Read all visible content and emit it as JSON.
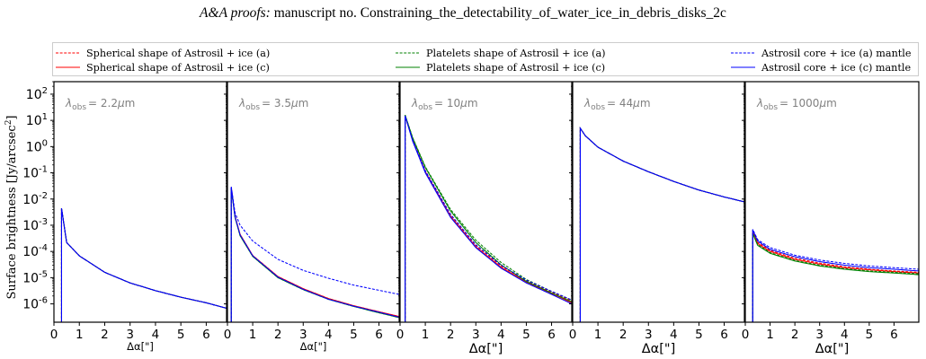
{
  "header": {
    "prefix": "A&A proofs:",
    "text": " manuscript no. Constraining_the_detectability_of_water_ice_in_debris_disks_2c"
  },
  "chart_data": {
    "type": "line",
    "ylabel": "Surface brightness [Jy/arcsec",
    "ylabel_sup": "2",
    "ylabel_end": "]",
    "yscale": "log",
    "ylim": [
      2e-07,
      300
    ],
    "y_tick_labels": [
      {
        "base": "10",
        "exp": "2"
      },
      {
        "base": "10",
        "exp": "1"
      },
      {
        "base": "10",
        "exp": "0"
      },
      {
        "base": "10",
        "exp": "-1"
      },
      {
        "base": "10",
        "exp": "-2"
      },
      {
        "base": "10",
        "exp": "-3"
      },
      {
        "base": "10",
        "exp": "-4"
      },
      {
        "base": "10",
        "exp": "-5"
      },
      {
        "base": "10",
        "exp": "-6"
      }
    ],
    "x_ticks": [
      "0",
      "1",
      "2",
      "3",
      "4",
      "5",
      "6"
    ],
    "legend": {
      "placement": "top",
      "entries": [
        {
          "label": "Spherical shape of Astrosil + ice (a)",
          "color": "#ff0000",
          "dash": true
        },
        {
          "label": "Spherical shape of Astrosil + ice (c)",
          "color": "#ff0000",
          "dash": false
        },
        {
          "label": "Platelets shape of Astrosil + ice (a)",
          "color": "#008000",
          "dash": true
        },
        {
          "label": "Platelets shape of Astrosil + ice (c)",
          "color": "#008000",
          "dash": false
        },
        {
          "label": "Astrosil core + ice (a) mantle",
          "color": "#0000ff",
          "dash": true
        },
        {
          "label": "Astrosil core + ice (c) mantle",
          "color": "#0000ff",
          "dash": false
        }
      ]
    },
    "panels": [
      {
        "lambda_sub": "obs",
        "lambda_val": "= 2.2",
        "lambda_unit": "m",
        "mu": "μ",
        "xlabel": "Δα[\"]",
        "xlabel_big": false,
        "xlim": [
          0,
          6.8
        ],
        "series": [
          {
            "color": "#ff0000",
            "dash": true,
            "x": [
              0.3,
              0.5,
              1,
              2,
              3,
              4,
              5,
              6,
              6.8
            ],
            "y": [
              0.0044,
              0.00022,
              6.8e-05,
              1.6e-05,
              6.3e-06,
              3.2e-06,
              1.8e-06,
              1.1e-06,
              6.8e-07
            ]
          },
          {
            "color": "#ff0000",
            "dash": false,
            "x": [
              0.3,
              0.5,
              1,
              2,
              3,
              4,
              5,
              6,
              6.8
            ],
            "y": [
              0.0044,
              0.00022,
              6.8e-05,
              1.6e-05,
              6.3e-06,
              3.2e-06,
              1.8e-06,
              1.1e-06,
              6.8e-07
            ]
          },
          {
            "color": "#008000",
            "dash": true,
            "x": [
              0.3,
              0.5,
              1,
              2,
              3,
              4,
              5,
              6,
              6.8
            ],
            "y": [
              0.0044,
              0.00022,
              6.8e-05,
              1.6e-05,
              6.3e-06,
              3.2e-06,
              1.8e-06,
              1.1e-06,
              6.8e-07
            ]
          },
          {
            "color": "#008000",
            "dash": false,
            "x": [
              0.3,
              0.5,
              1,
              2,
              3,
              4,
              5,
              6,
              6.8
            ],
            "y": [
              0.0044,
              0.00022,
              6.8e-05,
              1.6e-05,
              6.3e-06,
              3.2e-06,
              1.8e-06,
              1.1e-06,
              6.8e-07
            ]
          },
          {
            "color": "#0000ff",
            "dash": true,
            "x": [
              0.3,
              0.5,
              1,
              2,
              3,
              4,
              5,
              6,
              6.8
            ],
            "y": [
              0.0044,
              0.00022,
              6.8e-05,
              1.6e-05,
              6.3e-06,
              3.2e-06,
              1.8e-06,
              1.1e-06,
              6.8e-07
            ]
          },
          {
            "color": "#0000ff",
            "dash": false,
            "x": [
              0.3,
              0.5,
              1,
              2,
              3,
              4,
              5,
              6,
              6.8
            ],
            "y": [
              0.0044,
              0.00022,
              6.8e-05,
              1.6e-05,
              6.3e-06,
              3.2e-06,
              1.8e-06,
              1.1e-06,
              6.8e-07
            ]
          }
        ]
      },
      {
        "lambda_sub": "obs",
        "lambda_val": "= 3.5",
        "lambda_unit": "m",
        "mu": "μ",
        "xlabel": "Δα[\"]",
        "xlabel_big": false,
        "xlim": [
          0,
          6.8
        ],
        "series": [
          {
            "color": "#ff0000",
            "dash": true,
            "x": [
              0.15,
              0.3,
              0.5,
              1,
              2,
              3,
              4,
              5,
              6,
              6.8
            ],
            "y": [
              0.028,
              0.0022,
              0.00045,
              7e-05,
              1.1e-05,
              3.8e-06,
              1.6e-06,
              8.5e-07,
              5e-07,
              3.3e-07
            ]
          },
          {
            "color": "#ff0000",
            "dash": false,
            "x": [
              0.15,
              0.3,
              0.5,
              1,
              2,
              3,
              4,
              5,
              6,
              6.8
            ],
            "y": [
              0.028,
              0.0022,
              0.00045,
              7e-05,
              1.1e-05,
              3.8e-06,
              1.6e-06,
              8.5e-07,
              5e-07,
              3.3e-07
            ]
          },
          {
            "color": "#008000",
            "dash": true,
            "x": [
              0.15,
              0.3,
              0.5,
              1,
              2,
              3,
              4,
              5,
              6,
              6.8
            ],
            "y": [
              0.026,
              0.002,
              0.0004,
              6.5e-05,
              1e-05,
              3.5e-06,
              1.5e-06,
              8e-07,
              4.6e-07,
              3e-07
            ]
          },
          {
            "color": "#008000",
            "dash": false,
            "x": [
              0.15,
              0.3,
              0.5,
              1,
              2,
              3,
              4,
              5,
              6,
              6.8
            ],
            "y": [
              0.026,
              0.002,
              0.0004,
              6.5e-05,
              1e-05,
              3.5e-06,
              1.5e-06,
              8e-07,
              4.6e-07,
              3e-07
            ]
          },
          {
            "color": "#0000ff",
            "dash": true,
            "x": [
              0.15,
              0.3,
              0.5,
              1,
              2,
              3,
              4,
              5,
              6,
              6.8
            ],
            "y": [
              0.03,
              0.003,
              0.001,
              0.00025,
              5e-05,
              1.9e-05,
              9.5e-06,
              5.2e-06,
              3.3e-06,
              2.3e-06
            ]
          },
          {
            "color": "#0000ff",
            "dash": false,
            "x": [
              0.15,
              0.3,
              0.5,
              1,
              2,
              3,
              4,
              5,
              6,
              6.8
            ],
            "y": [
              0.028,
              0.0021,
              0.00043,
              6.8e-05,
              1.05e-05,
              3.6e-06,
              1.5e-06,
              8.2e-07,
              4.8e-07,
              3.1e-07
            ]
          }
        ]
      },
      {
        "lambda_sub": "obs",
        "lambda_val": "= 10",
        "lambda_unit": "m",
        "mu": "μ",
        "xlabel": "Δα[\"]",
        "xlabel_big": true,
        "xlim": [
          0,
          6.8
        ],
        "series": [
          {
            "color": "#ff0000",
            "dash": true,
            "x": [
              0.2,
              0.5,
              1,
              2,
              3,
              4,
              5,
              6,
              6.8
            ],
            "y": [
              15,
              1.8,
              0.12,
              0.0025,
              0.00017,
              2.8e-05,
              7.5e-06,
              2.8e-06,
              1.3e-06
            ]
          },
          {
            "color": "#ff0000",
            "dash": false,
            "x": [
              0.2,
              0.5,
              1,
              2,
              3,
              4,
              5,
              6,
              6.8
            ],
            "y": [
              15,
              1.7,
              0.11,
              0.0022,
              0.00015,
              2.5e-05,
              6.8e-06,
              2.5e-06,
              1.1e-06
            ]
          },
          {
            "color": "#008000",
            "dash": true,
            "x": [
              0.2,
              0.5,
              1,
              2,
              3,
              4,
              5,
              6,
              6.8
            ],
            "y": [
              16,
              2.2,
              0.17,
              0.004,
              0.00027,
              3.8e-05,
              8.5e-06,
              3e-06,
              1.4e-06
            ]
          },
          {
            "color": "#008000",
            "dash": false,
            "x": [
              0.2,
              0.5,
              1,
              2,
              3,
              4,
              5,
              6,
              6.8
            ],
            "y": [
              16,
              2.1,
              0.16,
              0.0035,
              0.00022,
              3.1e-05,
              7.2e-06,
              2.6e-06,
              1.2e-06
            ]
          },
          {
            "color": "#0000ff",
            "dash": true,
            "x": [
              0.2,
              0.5,
              1,
              2,
              3,
              4,
              5,
              6,
              6.8
            ],
            "y": [
              15,
              1.8,
              0.12,
              0.0026,
              0.00018,
              3e-05,
              8e-06,
              3e-06,
              1.4e-06
            ]
          },
          {
            "color": "#0000ff",
            "dash": false,
            "x": [
              0.2,
              0.5,
              1,
              2,
              3,
              4,
              5,
              6,
              6.8
            ],
            "y": [
              15,
              1.6,
              0.1,
              0.002,
              0.00014,
              2.3e-05,
              6.3e-06,
              2.3e-06,
              1e-06
            ]
          }
        ]
      },
      {
        "lambda_sub": "obs",
        "lambda_val": "= 44",
        "lambda_unit": "m",
        "mu": "μ",
        "xlabel": "Δα[\"]",
        "xlabel_big": true,
        "xlim": [
          0,
          6.8
        ],
        "series": [
          {
            "color": "#ff0000",
            "dash": true,
            "x": [
              0.3,
              0.5,
              1,
              2,
              3,
              4,
              5,
              6,
              6.8
            ],
            "y": [
              5,
              2.6,
              0.95,
              0.28,
              0.11,
              0.047,
              0.022,
              0.012,
              0.0078
            ]
          },
          {
            "color": "#ff0000",
            "dash": false,
            "x": [
              0.3,
              0.5,
              1,
              2,
              3,
              4,
              5,
              6,
              6.8
            ],
            "y": [
              5,
              2.6,
              0.95,
              0.28,
              0.11,
              0.047,
              0.022,
              0.012,
              0.0078
            ]
          },
          {
            "color": "#008000",
            "dash": true,
            "x": [
              0.3,
              0.5,
              1,
              2,
              3,
              4,
              5,
              6,
              6.8
            ],
            "y": [
              5,
              2.6,
              0.95,
              0.28,
              0.11,
              0.047,
              0.022,
              0.012,
              0.0078
            ]
          },
          {
            "color": "#008000",
            "dash": false,
            "x": [
              0.3,
              0.5,
              1,
              2,
              3,
              4,
              5,
              6,
              6.8
            ],
            "y": [
              5,
              2.6,
              0.95,
              0.28,
              0.11,
              0.047,
              0.022,
              0.012,
              0.0078
            ]
          },
          {
            "color": "#0000ff",
            "dash": true,
            "x": [
              0.3,
              0.5,
              1,
              2,
              3,
              4,
              5,
              6,
              6.8
            ],
            "y": [
              5,
              2.6,
              0.95,
              0.28,
              0.11,
              0.047,
              0.022,
              0.012,
              0.0078
            ]
          },
          {
            "color": "#0000ff",
            "dash": false,
            "x": [
              0.3,
              0.5,
              1,
              2,
              3,
              4,
              5,
              6,
              6.8
            ],
            "y": [
              5,
              2.6,
              0.95,
              0.28,
              0.11,
              0.047,
              0.022,
              0.012,
              0.0078
            ]
          }
        ]
      },
      {
        "lambda_sub": "obs",
        "lambda_val": "= 1000",
        "lambda_unit": "m",
        "mu": "μ",
        "xlabel": "Δα[\"]",
        "xlabel_big": true,
        "xlim": [
          0,
          7
        ],
        "series": [
          {
            "color": "#ff0000",
            "dash": true,
            "x": [
              0.3,
              0.5,
              1,
              2,
              3,
              4,
              5,
              6,
              7
            ],
            "y": [
              0.0006,
              0.00022,
              0.00011,
              5.5e-05,
              3.6e-05,
              2.6e-05,
              2.1e-05,
              1.8e-05,
              1.6e-05
            ]
          },
          {
            "color": "#ff0000",
            "dash": false,
            "x": [
              0.3,
              0.5,
              1,
              2,
              3,
              4,
              5,
              6,
              7
            ],
            "y": [
              0.00055,
              0.0002,
              0.0001,
              5e-05,
              3.3e-05,
              2.4e-05,
              2e-05,
              1.7e-05,
              1.5e-05
            ]
          },
          {
            "color": "#008000",
            "dash": true,
            "x": [
              0.3,
              0.5,
              1,
              2,
              3,
              4,
              5,
              6,
              7
            ],
            "y": [
              0.0005,
              0.00018,
              9e-05,
              4.5e-05,
              3e-05,
              2.2e-05,
              1.8e-05,
              1.6e-05,
              1.4e-05
            ]
          },
          {
            "color": "#008000",
            "dash": false,
            "x": [
              0.3,
              0.5,
              1,
              2,
              3,
              4,
              5,
              6,
              7
            ],
            "y": [
              0.00048,
              0.00017,
              8.5e-05,
              4.3e-05,
              2.8e-05,
              2.1e-05,
              1.7e-05,
              1.5e-05,
              1.3e-05
            ]
          },
          {
            "color": "#0000ff",
            "dash": true,
            "x": [
              0.3,
              0.5,
              1,
              2,
              3,
              4,
              5,
              6,
              7
            ],
            "y": [
              0.0007,
              0.00028,
              0.00014,
              7.2e-05,
              4.7e-05,
              3.5e-05,
              2.8e-05,
              2.4e-05,
              2.1e-05
            ]
          },
          {
            "color": "#0000ff",
            "dash": false,
            "x": [
              0.3,
              0.5,
              1,
              2,
              3,
              4,
              5,
              6,
              7
            ],
            "y": [
              0.00065,
              0.00025,
              0.00012,
              6.3e-05,
              4.1e-05,
              3e-05,
              2.4e-05,
              2.1e-05,
              1.8e-05
            ]
          }
        ]
      }
    ]
  }
}
